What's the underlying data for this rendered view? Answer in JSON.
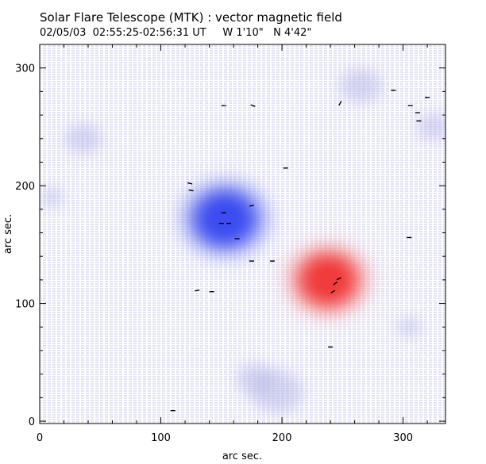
{
  "header": {
    "title": "Solar Flare Telescope (MTK) : vector magnetic field",
    "subtitle": "02/05/03  02:55:25-02:56:31 UT     W 1'10\"   N 4'42\""
  },
  "colors": {
    "negative_polarity": "#3b4cf0",
    "positive_polarity": "#f03b3b",
    "background_noise_blue": "#b9b9e8",
    "background_noise_red": "#e8b9b9",
    "vector": "#000000"
  },
  "chart_data": {
    "type": "heatmap",
    "title": "Solar Flare Telescope (MTK) : vector magnetic field",
    "xlabel": "arc sec.",
    "ylabel": "arc sec.",
    "xlim": [
      0,
      335
    ],
    "ylim": [
      -2,
      320
    ],
    "xticks": [
      0,
      100,
      200,
      300
    ],
    "yticks": [
      0,
      100,
      200,
      300
    ],
    "xtick_labels": [
      "0",
      "100",
      "200",
      "300"
    ],
    "ytick_labels": [
      "0",
      "100",
      "200",
      "300"
    ],
    "grid": false,
    "sources": [
      {
        "name": "negative polarity region",
        "polarity": "negative",
        "x": 153,
        "y": 172,
        "radius": 32
      },
      {
        "name": "positive polarity region",
        "polarity": "positive",
        "x": 238,
        "y": 120,
        "radius": 30
      }
    ],
    "vectors": [
      {
        "x": 152,
        "y": 268,
        "angle": 0
      },
      {
        "x": 176,
        "y": 268,
        "angle": -20
      },
      {
        "x": 124,
        "y": 202,
        "angle": -15
      },
      {
        "x": 125,
        "y": 196,
        "angle": -10
      },
      {
        "x": 152,
        "y": 177,
        "angle": 0
      },
      {
        "x": 150,
        "y": 168,
        "angle": 0
      },
      {
        "x": 156,
        "y": 168,
        "angle": 0
      },
      {
        "x": 175,
        "y": 183,
        "angle": 10
      },
      {
        "x": 163,
        "y": 155,
        "angle": 0
      },
      {
        "x": 175,
        "y": 136,
        "angle": 0
      },
      {
        "x": 192,
        "y": 136,
        "angle": 0
      },
      {
        "x": 203,
        "y": 215,
        "angle": 0
      },
      {
        "x": 130,
        "y": 111,
        "angle": 10
      },
      {
        "x": 142,
        "y": 110,
        "angle": 0
      },
      {
        "x": 247,
        "y": 121,
        "angle": 25
      },
      {
        "x": 244,
        "y": 117,
        "angle": 35
      },
      {
        "x": 242,
        "y": 110,
        "angle": 30
      },
      {
        "x": 240,
        "y": 63,
        "angle": 0
      },
      {
        "x": 248,
        "y": 270,
        "angle": 60
      },
      {
        "x": 292,
        "y": 281,
        "angle": 0
      },
      {
        "x": 306,
        "y": 268,
        "angle": 0
      },
      {
        "x": 312,
        "y": 262,
        "angle": 0
      },
      {
        "x": 313,
        "y": 255,
        "angle": 0
      },
      {
        "x": 320,
        "y": 275,
        "angle": 0
      },
      {
        "x": 305,
        "y": 156,
        "angle": 0
      },
      {
        "x": 110,
        "y": 9,
        "angle": 0
      }
    ]
  }
}
